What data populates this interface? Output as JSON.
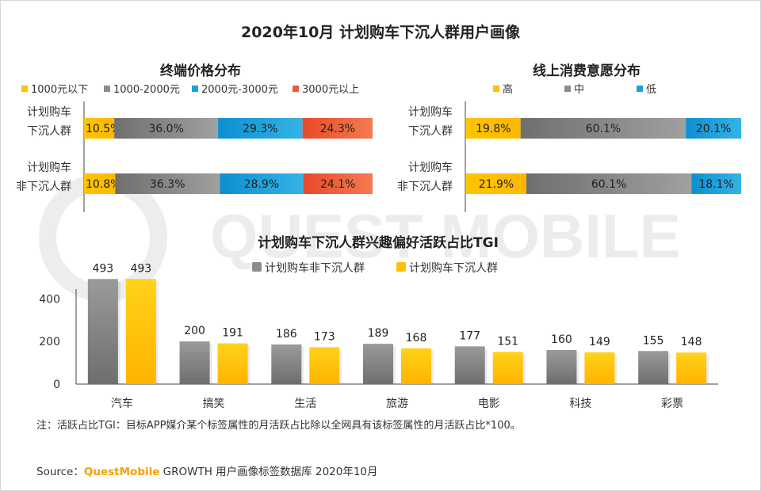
{
  "page_title": "2020年10月 计划购车下沉人群用户画像",
  "watermark": "QUEST MOBILE",
  "colors": {
    "yellow": "#FFC107",
    "gray": "#8C8C8C",
    "blue": "#1FA1D8",
    "red": "#EE5A36"
  },
  "chart_data": [
    {
      "type": "bar",
      "orientation": "horizontal-stacked-percent",
      "title": "终端价格分布",
      "categories": [
        "计划购车\n下沉人群",
        "计划购车\n非下沉人群"
      ],
      "series": [
        {
          "name": "1000元以下",
          "values": [
            10.5,
            10.8
          ]
        },
        {
          "name": "1000-2000元",
          "values": [
            36.0,
            36.3
          ]
        },
        {
          "name": "2000元-3000元",
          "values": [
            29.3,
            28.9
          ]
        },
        {
          "name": "3000元以上",
          "values": [
            24.3,
            24.1
          ]
        }
      ],
      "value_labels": [
        [
          "10.5%",
          "36.0%",
          "29.3%",
          "24.3%"
        ],
        [
          "10.8%",
          "36.3%",
          "28.9%",
          "24.1%"
        ]
      ],
      "legend": "top-left"
    },
    {
      "type": "bar",
      "orientation": "horizontal-stacked-percent",
      "title": "线上消费意愿分布",
      "categories": [
        "计划购车\n下沉人群",
        "计划购车\n非下沉人群"
      ],
      "series": [
        {
          "name": "高",
          "values": [
            19.8,
            21.9
          ]
        },
        {
          "name": "中",
          "values": [
            60.1,
            60.1
          ]
        },
        {
          "name": "低",
          "values": [
            20.1,
            18.1
          ]
        }
      ],
      "value_labels": [
        [
          "19.8%",
          "60.1%",
          "20.1%"
        ],
        [
          "21.9%",
          "60.1%",
          "18.1%"
        ]
      ],
      "legend": "top-left"
    },
    {
      "type": "bar",
      "title": "计划购车下沉人群兴趣偏好活跃占比TGI",
      "categories": [
        "汽车",
        "搞笑",
        "生活",
        "旅游",
        "电影",
        "科技",
        "彩票"
      ],
      "series": [
        {
          "name": "计划购车非下沉人群",
          "values": [
            493,
            200,
            186,
            189,
            177,
            160,
            155
          ]
        },
        {
          "name": "计划购车下沉人群",
          "values": [
            493,
            191,
            173,
            168,
            151,
            149,
            148
          ]
        }
      ],
      "yticks": [
        "0",
        "200",
        "400"
      ],
      "ylim": [
        0,
        520
      ],
      "legend": "top-center",
      "grid": false
    }
  ],
  "note": "注：活跃占比TGI：目标APP媒介某个标签属性的月活跃占比除以全网具有该标签属性的月活跃占比*100。",
  "source": {
    "prefix": "Source：",
    "brand": "QuestMobile",
    "suffix": " GROWTH 用户画像标签数据库 2020年10月"
  }
}
